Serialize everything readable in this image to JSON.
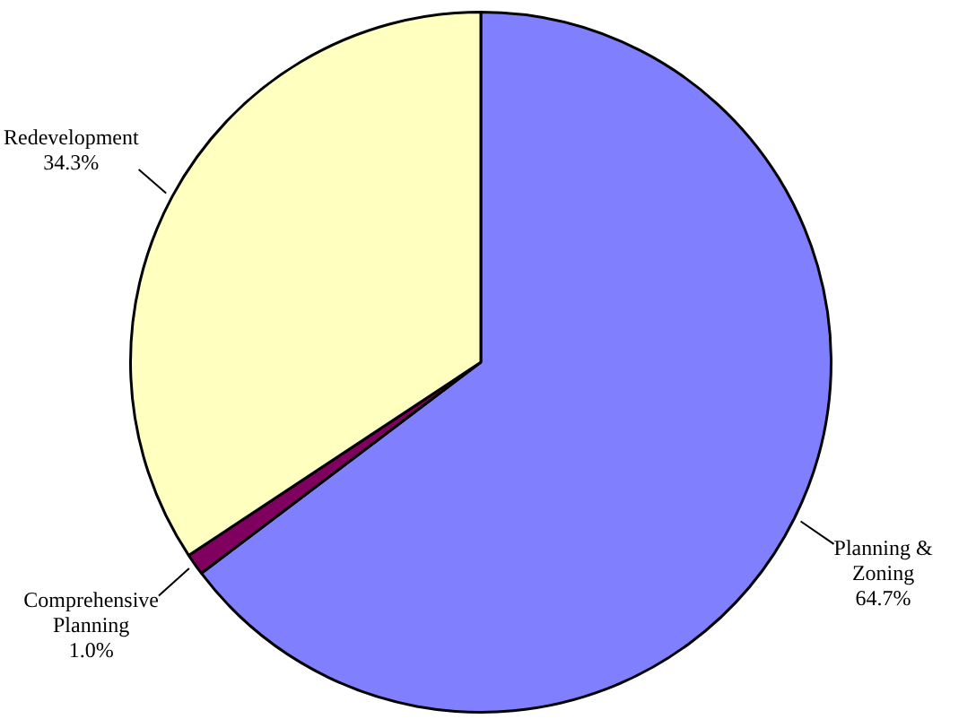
{
  "chart_data": {
    "type": "pie",
    "categories": [
      "Planning & Zoning",
      "Comprehensive Planning",
      "Redevelopment"
    ],
    "values": [
      64.7,
      1.0,
      34.3
    ],
    "colors": [
      "#8080ff",
      "#800060",
      "#ffffc0"
    ],
    "value_labels": [
      "64.7%",
      "1.0%",
      "34.3%"
    ],
    "legend": false
  }
}
